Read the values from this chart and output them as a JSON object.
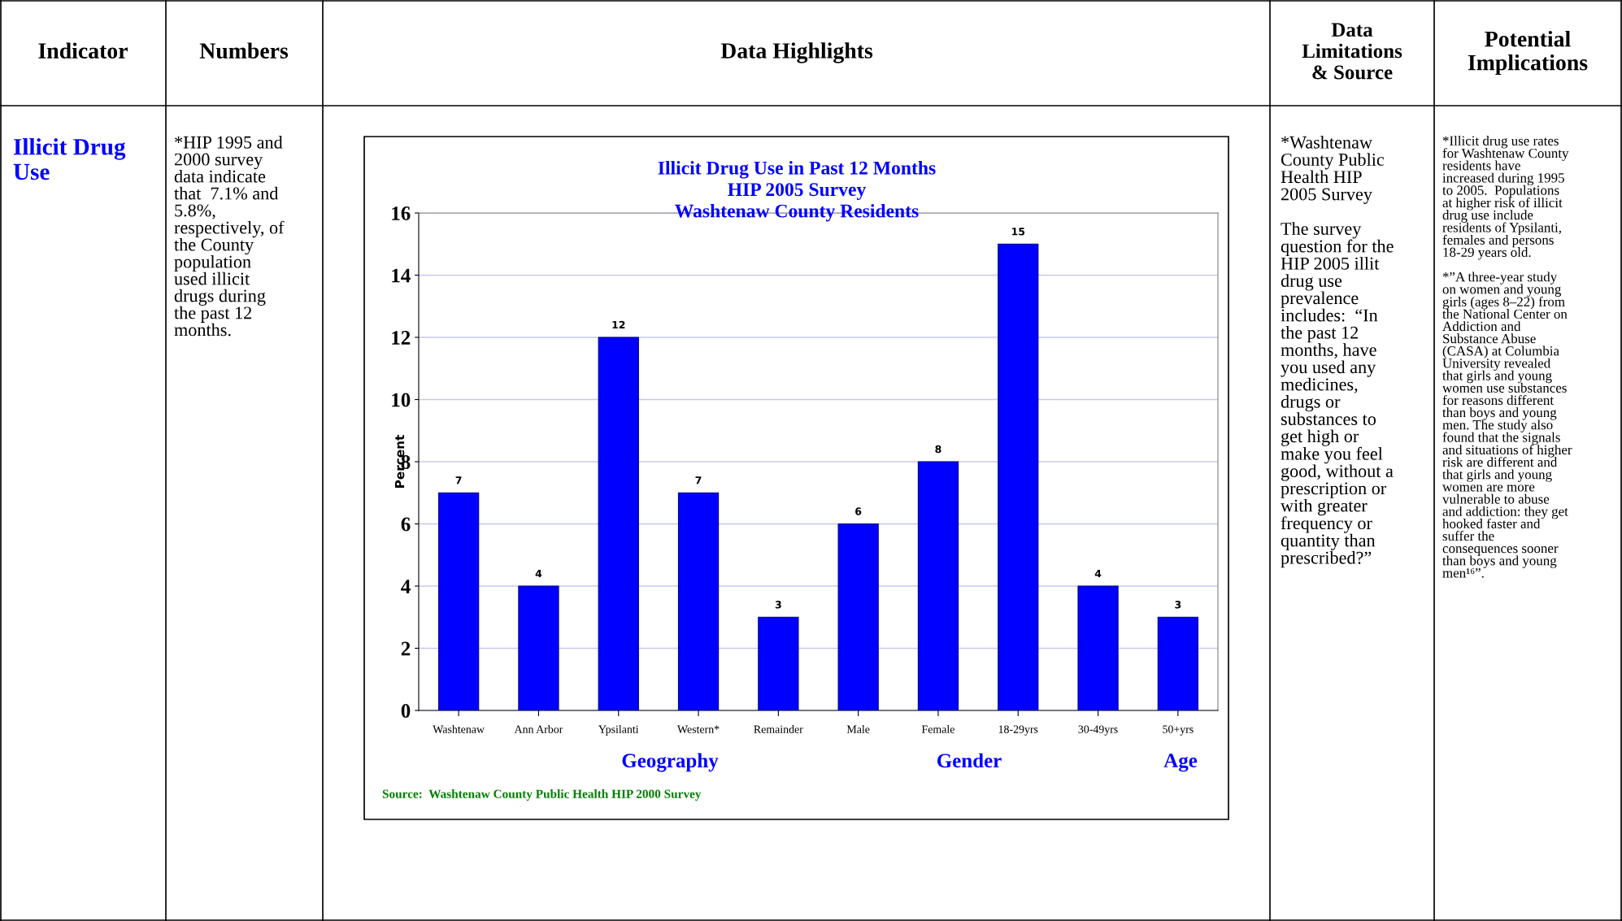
{
  "chart_data": {
    "type": "bar",
    "title": "Illicit Drug Use in Past 12 Months\nHIP 2005 Survey\nWashtenaw County Residents",
    "ylabel": "Percent",
    "categories": [
      "Washtenaw",
      "Ann Arbor",
      "Ypsilanti",
      "Western*",
      "Remainder",
      "Male",
      "Female",
      "18-29yrs",
      "30-49yrs",
      "50+yrs"
    ],
    "values": [
      7,
      4,
      12,
      7,
      3,
      6,
      8,
      15,
      4,
      3
    ],
    "color": "#0000ff",
    "ylim": [
      0,
      16
    ],
    "yticks": [
      0,
      2,
      4,
      6,
      8,
      10,
      12,
      14,
      16
    ],
    "grid": "y",
    "data_labels": true,
    "annotations": [
      "Indicator",
      "Numbers",
      "Data Highlights",
      "Data\nLimitations\n& Source",
      "Potential\nImplications",
      "Illicit Drug\nUse",
      "*HIP 1995 and\n2000 survey\ndata indicate\nthat  7.1% and\n5.8%,\nrespectively, of\nthe County\npopulation\nused illicit\ndrugs during\nthe past 12\nmonths.",
      "*Washtenaw\nCounty Public\nHealth HIP\n2005 Survey\n\nThe survey\nquestion for the\nHIP 2005 illit\ndrug use\nprevalence\nincludes:  “In\nthe past 12\nmonths, have\nyou used any\nmedicines,\ndrugs or\nsubstances to\nget high or\nmake you feel\ngood, without a\nprescription or\nwith greater\nfrequency or\nquantity than\nprescribed?”",
      "*Illicit drug use rates\nfor Washtenaw County\nresidents have\nincreased during 1995\nto 2005.  Populations\nat higher risk of illicit\ndrug use include\nresidents of Ypsilanti,\nfemales and persons\n18-29 years old.\n\n*”A three-year study\non women and young\ngirls (ages 8–22) from\nthe National Center on\nAddiction and\nSubstance Abuse\n(CASA) at Columbia\nUniversity revealed\nthat girls and young\nwomen use substances\nfor reasons different\nthan boys and young\nmen. The study also\nfound that the signals\nand situations of higher\nrisk are different and\nthat girls and young\nwomen are more\nvulnerable to abuse\nand addiction: they get\nhooked faster and\nsuffer the\nconsequences sooner\nthan boys and young\nmen¹⁶”.",
      "Geography",
      "Gender",
      "Age",
      "Source:  Washtenaw County Public Health HIP 2000 Survey"
    ]
  }
}
